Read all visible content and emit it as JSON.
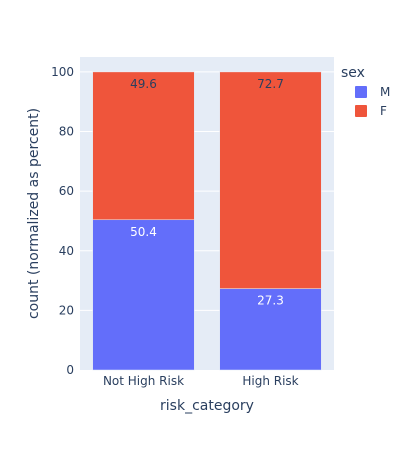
{
  "chart_data": {
    "type": "bar",
    "stacked": true,
    "categories": [
      "Not High Risk",
      "High Risk"
    ],
    "series": [
      {
        "name": "M",
        "values": [
          50.4,
          27.3
        ],
        "color": "#636efa",
        "label_color": "#ffffff",
        "label_position": "inside-top"
      },
      {
        "name": "F",
        "values": [
          49.6,
          72.7
        ],
        "color": "#ef553b",
        "label_color": "#2a3f5f",
        "label_position": "inside-top"
      }
    ],
    "data_labels": [
      [
        "50.4",
        "27.3"
      ],
      [
        "49.6",
        "72.7"
      ]
    ],
    "xlabel": "risk_category",
    "ylabel": "count (normalized as percent)",
    "ylim": [
      0,
      105
    ],
    "yticks": [
      0,
      20,
      40,
      60,
      80,
      100
    ],
    "ytick_labels": [
      "0",
      "20",
      "40",
      "60",
      "80",
      "100"
    ],
    "grid": true,
    "legend": {
      "title": "sex",
      "placement": "right",
      "entries": [
        "M",
        "F"
      ]
    },
    "background": "#e5ecf6",
    "gridline_color": "#ffffff"
  }
}
